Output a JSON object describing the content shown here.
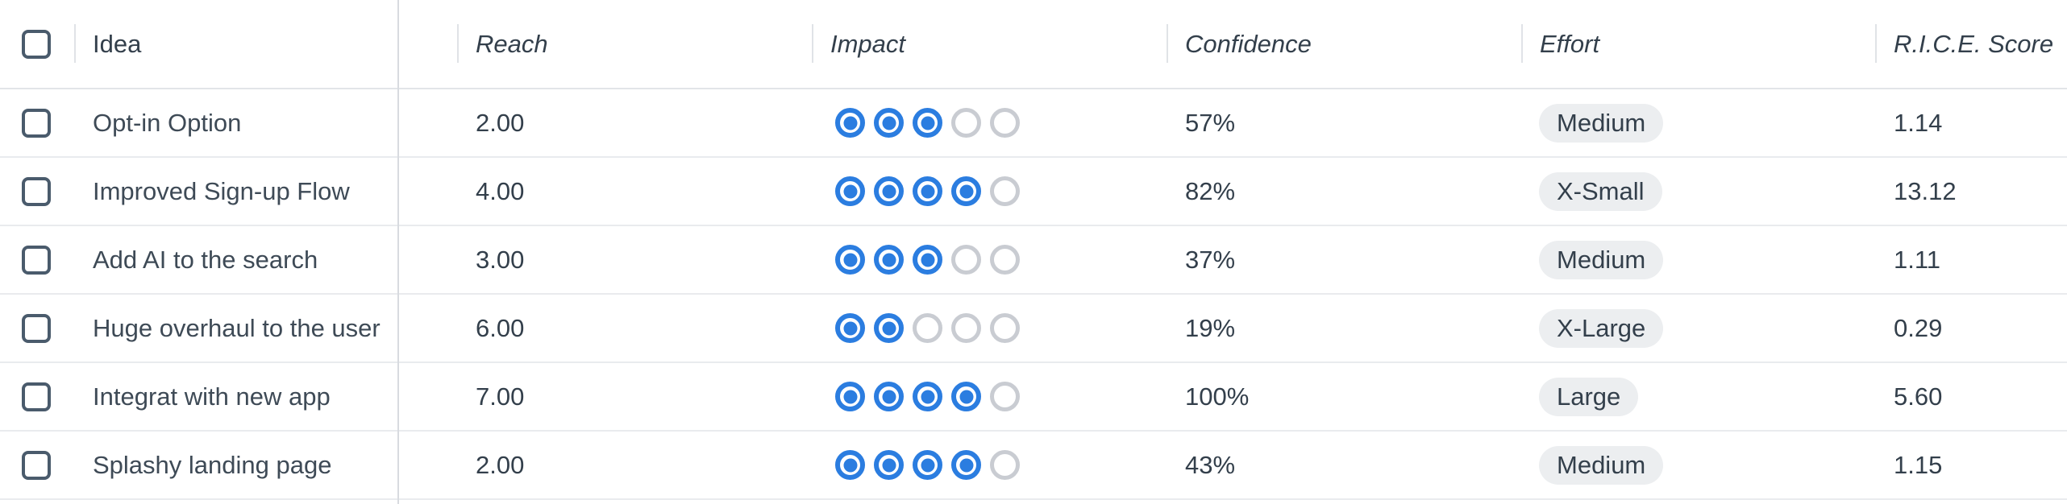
{
  "table": {
    "columns": [
      {
        "key": "idea",
        "label": "Idea",
        "italic": false
      },
      {
        "key": "reach",
        "label": "Reach",
        "italic": true
      },
      {
        "key": "impact",
        "label": "Impact",
        "italic": true
      },
      {
        "key": "confidence",
        "label": "Confidence",
        "italic": true
      },
      {
        "key": "effort",
        "label": "Effort",
        "italic": true
      },
      {
        "key": "rice",
        "label": "R.I.C.E. Score",
        "italic": true
      }
    ],
    "impact_max": 5,
    "rows": [
      {
        "idea": "Opt-in Option",
        "reach": "2.00",
        "impact": 3,
        "confidence": "57%",
        "effort": "Medium",
        "rice": "1.14"
      },
      {
        "idea": "Improved Sign-up Flow",
        "reach": "4.00",
        "impact": 4,
        "confidence": "82%",
        "effort": "X-Small",
        "rice": "13.12"
      },
      {
        "idea": "Add AI to the search",
        "reach": "3.00",
        "impact": 3,
        "confidence": "37%",
        "effort": "Medium",
        "rice": "1.11"
      },
      {
        "idea": "Huge overhaul to the user",
        "reach": "6.00",
        "impact": 2,
        "confidence": "19%",
        "effort": "X-Large",
        "rice": "0.29"
      },
      {
        "idea": "Integrat with new app",
        "reach": "7.00",
        "impact": 4,
        "confidence": "100%",
        "effort": "Large",
        "rice": "5.60"
      },
      {
        "idea": "Splashy landing page",
        "reach": "2.00",
        "impact": 4,
        "confidence": "43%",
        "effort": "Medium",
        "rice": "1.15"
      }
    ]
  },
  "colors": {
    "accent_blue": "#2b7de0",
    "empty_dot_gray": "#c9ccd2",
    "pill_background": "#eceef0",
    "checkbox_border": "#4a5b6c",
    "text_dark": "#333f4b",
    "row_separator": "#e9ebee",
    "pinned_border": "#d8dbe0"
  }
}
